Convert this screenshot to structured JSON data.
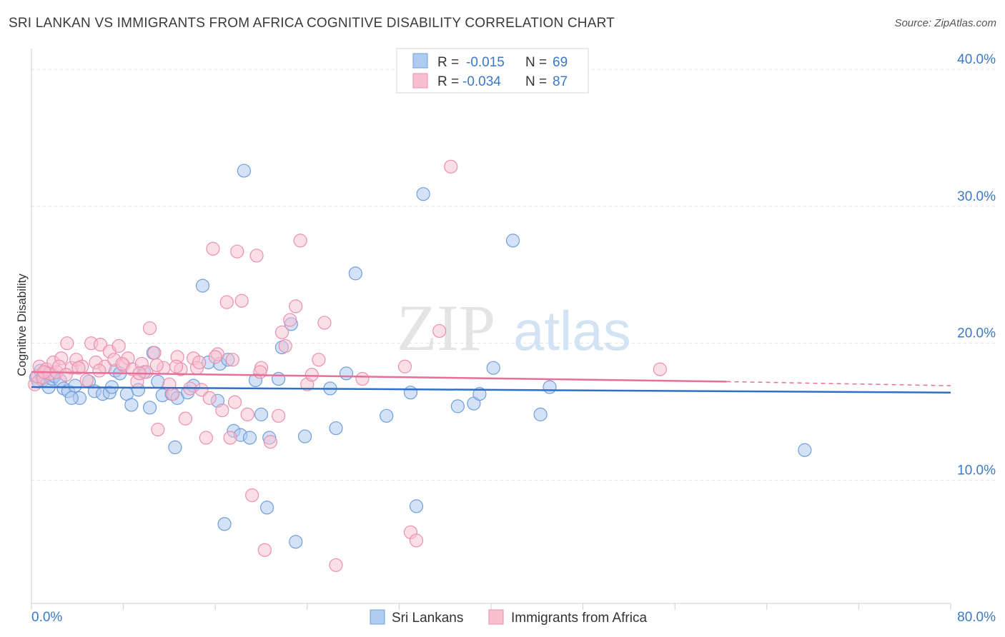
{
  "header": {
    "title": "SRI LANKAN VS IMMIGRANTS FROM AFRICA COGNITIVE DISABILITY CORRELATION CHART",
    "source": "Source: ZipAtlas.com"
  },
  "watermark": {
    "zip": "ZIP",
    "atlas": "atlas"
  },
  "stats": {
    "r_label": "R =",
    "n_label": "N =",
    "series1": {
      "r": "-0.015",
      "n": "69"
    },
    "series2": {
      "r": "-0.034",
      "n": "87"
    }
  },
  "colors": {
    "blue_fill": "#aecbf0",
    "blue_stroke": "#6f9fd8",
    "blue_line": "#2f6fc7",
    "pink_fill": "#f7bfd0",
    "pink_stroke": "#eb8fae",
    "pink_line": "#e76f98",
    "accent_text": "#3a78c9"
  },
  "chart_data": {
    "type": "scatter",
    "title": "SRI LANKAN VS IMMIGRANTS FROM AFRICA COGNITIVE DISABILITY CORRELATION CHART",
    "ylabel": "Cognitive Disability",
    "xlabel": "",
    "xlim": [
      0,
      80
    ],
    "ylim": [
      1,
      41
    ],
    "x_ticks": [
      "0.0%",
      "80.0%"
    ],
    "y_ticks": [
      {
        "value": 10,
        "label": "10.0%"
      },
      {
        "value": 20,
        "label": "20.0%"
      },
      {
        "value": 30,
        "label": "30.0%"
      },
      {
        "value": 40,
        "label": "40.0%"
      }
    ],
    "grid": true,
    "legend": "bottom",
    "series": [
      {
        "name": "Sri Lankans",
        "trend": {
          "x0": 0,
          "y0": 16.8,
          "x1": 80,
          "y1": 16.4
        },
        "points": [
          [
            0.4,
            17.5
          ],
          [
            0.6,
            17.2
          ],
          [
            0.8,
            18.0
          ],
          [
            1.0,
            17.3
          ],
          [
            1.2,
            17.8
          ],
          [
            1.5,
            16.8
          ],
          [
            1.8,
            17.4
          ],
          [
            2.0,
            17.6
          ],
          [
            2.5,
            17.3
          ],
          [
            2.8,
            16.7
          ],
          [
            3.2,
            16.5
          ],
          [
            3.8,
            16.9
          ],
          [
            4.2,
            16.0
          ],
          [
            5.0,
            17.2
          ],
          [
            5.5,
            16.5
          ],
          [
            6.2,
            16.3
          ],
          [
            6.8,
            16.4
          ],
          [
            7.3,
            18.0
          ],
          [
            7.7,
            17.8
          ],
          [
            8.3,
            16.3
          ],
          [
            8.7,
            15.5
          ],
          [
            9.3,
            16.6
          ],
          [
            9.8,
            17.9
          ],
          [
            10.3,
            15.3
          ],
          [
            10.6,
            19.3
          ],
          [
            11.4,
            16.2
          ],
          [
            12.2,
            16.3
          ],
          [
            12.7,
            16.0
          ],
          [
            13.6,
            16.4
          ],
          [
            14.1,
            16.9
          ],
          [
            14.9,
            24.2
          ],
          [
            15.4,
            18.6
          ],
          [
            16.2,
            15.8
          ],
          [
            16.4,
            18.5
          ],
          [
            17.1,
            18.8
          ],
          [
            17.6,
            13.6
          ],
          [
            18.2,
            13.3
          ],
          [
            18.5,
            32.6
          ],
          [
            19.0,
            13.1
          ],
          [
            19.5,
            17.3
          ],
          [
            20.0,
            14.8
          ],
          [
            20.7,
            13.1
          ],
          [
            21.5,
            17.4
          ],
          [
            21.8,
            19.7
          ],
          [
            22.6,
            21.4
          ],
          [
            23.0,
            5.5
          ],
          [
            23.8,
            13.2
          ],
          [
            26.0,
            16.7
          ],
          [
            26.5,
            13.8
          ],
          [
            27.4,
            17.8
          ],
          [
            28.2,
            25.1
          ],
          [
            30.9,
            14.7
          ],
          [
            33.0,
            16.4
          ],
          [
            33.5,
            8.1
          ],
          [
            34.1,
            30.9
          ],
          [
            37.1,
            15.4
          ],
          [
            38.5,
            15.6
          ],
          [
            39.0,
            16.3
          ],
          [
            40.2,
            18.2
          ],
          [
            41.9,
            27.5
          ],
          [
            44.3,
            14.8
          ],
          [
            45.1,
            16.8
          ],
          [
            67.3,
            12.2
          ],
          [
            16.8,
            6.8
          ],
          [
            20.5,
            8.0
          ],
          [
            7.0,
            16.8
          ],
          [
            11.0,
            17.2
          ],
          [
            12.5,
            12.4
          ],
          [
            3.5,
            16.0
          ]
        ]
      },
      {
        "name": "Immigrants from Africa",
        "trend": {
          "x0": 0,
          "y0": 17.9,
          "x1": 60.5,
          "y1": 17.2
        },
        "trend_dashed": {
          "x0": 60.5,
          "y0": 17.2,
          "x1": 80,
          "y1": 16.9
        },
        "points": [
          [
            0.3,
            17.0
          ],
          [
            0.5,
            17.6
          ],
          [
            0.7,
            18.3
          ],
          [
            1.0,
            17.5
          ],
          [
            1.3,
            18.1
          ],
          [
            1.6,
            17.8
          ],
          [
            1.9,
            18.6
          ],
          [
            2.2,
            17.9
          ],
          [
            2.6,
            18.9
          ],
          [
            3.1,
            20.0
          ],
          [
            3.5,
            18.2
          ],
          [
            3.9,
            18.8
          ],
          [
            4.4,
            18.3
          ],
          [
            4.8,
            17.3
          ],
          [
            5.2,
            20.0
          ],
          [
            5.6,
            18.6
          ],
          [
            6.0,
            19.9
          ],
          [
            6.4,
            18.3
          ],
          [
            6.8,
            19.4
          ],
          [
            7.2,
            18.8
          ],
          [
            7.6,
            19.8
          ],
          [
            8.0,
            18.4
          ],
          [
            8.4,
            18.9
          ],
          [
            8.8,
            18.1
          ],
          [
            9.2,
            17.2
          ],
          [
            9.6,
            18.5
          ],
          [
            10.0,
            17.9
          ],
          [
            10.3,
            21.1
          ],
          [
            10.7,
            19.3
          ],
          [
            11.0,
            13.7
          ],
          [
            11.5,
            18.2
          ],
          [
            12.0,
            17.0
          ],
          [
            12.3,
            16.3
          ],
          [
            12.7,
            19.0
          ],
          [
            13.0,
            18.1
          ],
          [
            13.4,
            14.5
          ],
          [
            13.8,
            16.7
          ],
          [
            14.1,
            18.9
          ],
          [
            14.4,
            18.2
          ],
          [
            14.8,
            16.6
          ],
          [
            15.2,
            13.1
          ],
          [
            15.5,
            16.0
          ],
          [
            15.8,
            26.9
          ],
          [
            16.2,
            19.2
          ],
          [
            16.6,
            15.1
          ],
          [
            17.0,
            23.0
          ],
          [
            17.3,
            13.1
          ],
          [
            17.7,
            15.7
          ],
          [
            17.9,
            26.7
          ],
          [
            18.3,
            23.1
          ],
          [
            18.8,
            14.8
          ],
          [
            19.2,
            8.9
          ],
          [
            19.6,
            26.4
          ],
          [
            20.0,
            18.2
          ],
          [
            20.3,
            4.9
          ],
          [
            20.8,
            12.8
          ],
          [
            21.5,
            14.7
          ],
          [
            21.8,
            20.8
          ],
          [
            22.1,
            19.8
          ],
          [
            22.5,
            21.7
          ],
          [
            23.0,
            22.7
          ],
          [
            23.4,
            27.5
          ],
          [
            24.0,
            17.0
          ],
          [
            25.0,
            18.8
          ],
          [
            25.5,
            21.5
          ],
          [
            26.5,
            3.8
          ],
          [
            28.8,
            17.4
          ],
          [
            32.5,
            18.3
          ],
          [
            33.0,
            6.2
          ],
          [
            33.5,
            5.6
          ],
          [
            35.5,
            20.9
          ],
          [
            36.5,
            32.9
          ],
          [
            54.7,
            18.1
          ],
          [
            1.1,
            17.9
          ],
          [
            2.4,
            18.3
          ],
          [
            3.0,
            17.7
          ],
          [
            4.1,
            18.2
          ],
          [
            5.9,
            18.0
          ],
          [
            7.9,
            18.5
          ],
          [
            9.4,
            17.8
          ],
          [
            10.9,
            18.4
          ],
          [
            12.6,
            18.3
          ],
          [
            14.6,
            18.6
          ],
          [
            16.0,
            19.0
          ],
          [
            17.5,
            18.8
          ],
          [
            19.9,
            17.9
          ],
          [
            24.4,
            17.7
          ]
        ]
      }
    ]
  }
}
